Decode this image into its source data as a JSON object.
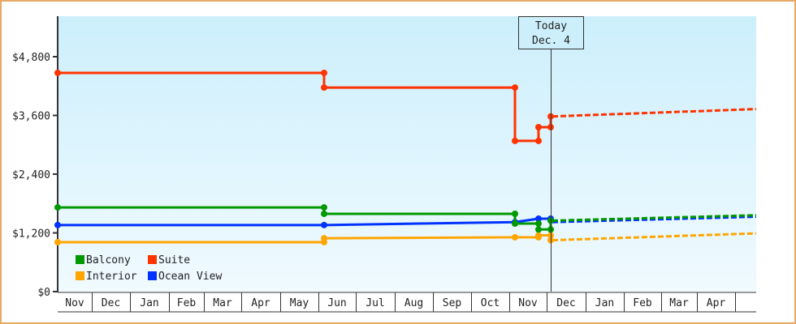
{
  "chart_data": {
    "type": "line",
    "title": "",
    "xlabel": "",
    "ylabel": "",
    "ylim": [
      0,
      5600
    ],
    "y_ticks": [
      {
        "value": 0,
        "label": "$0"
      },
      {
        "value": 1200,
        "label": "$1,200"
      },
      {
        "value": 2400,
        "label": "$2,400"
      },
      {
        "value": 3600,
        "label": "$3,600"
      },
      {
        "value": 4800,
        "label": "$4,800"
      }
    ],
    "x_months": [
      "Nov",
      "Dec",
      "Jan",
      "Feb",
      "Mar",
      "Apr",
      "May",
      "Jun",
      "Jul",
      "Aug",
      "Sep",
      "Oct",
      "Nov",
      "Dec",
      "Jan",
      "Feb",
      "Mar",
      "Apr",
      ""
    ],
    "today_marker": {
      "line1": "Today",
      "line2": "Dec. 4"
    },
    "legend": [
      {
        "name": "Balcony",
        "color": "#009900"
      },
      {
        "name": "Suite",
        "color": "#ff3300"
      },
      {
        "name": "Interior",
        "color": "#ffa500"
      },
      {
        "name": "Ocean View",
        "color": "#0033ff"
      }
    ],
    "series": [
      {
        "name": "Suite",
        "color": "#ff3300",
        "points": [
          [
            "Nov start",
            4470
          ],
          [
            "Jun",
            4470
          ],
          [
            "Jun",
            4170
          ],
          [
            "Nov mid",
            4170
          ],
          [
            "Nov mid",
            3080
          ],
          [
            "Nov late",
            3080
          ],
          [
            "Nov late",
            3360
          ],
          [
            "Dec 4",
            3360
          ],
          [
            "Dec 4",
            3580
          ]
        ],
        "forecast": [
          [
            "Dec 4",
            3580
          ],
          [
            "Apr end",
            3730
          ]
        ]
      },
      {
        "name": "Balcony",
        "color": "#009900",
        "points": [
          [
            "Nov start",
            1720
          ],
          [
            "Jun",
            1720
          ],
          [
            "Jun",
            1590
          ],
          [
            "Nov mid",
            1590
          ],
          [
            "Nov mid",
            1390
          ],
          [
            "Nov late",
            1390
          ],
          [
            "Nov late",
            1270
          ],
          [
            "Dec 4",
            1270
          ],
          [
            "Dec 4",
            1450
          ]
        ],
        "forecast": [
          [
            "Dec 4",
            1450
          ],
          [
            "Apr end",
            1560
          ]
        ]
      },
      {
        "name": "Ocean View",
        "color": "#0033ff",
        "points": [
          [
            "Nov start",
            1360
          ],
          [
            "Jun",
            1360
          ],
          [
            "Nov mid",
            1420
          ],
          [
            "Nov late",
            1490
          ],
          [
            "Dec 4",
            1490
          ]
        ],
        "forecast": [
          [
            "Dec 4",
            1420
          ],
          [
            "Apr end",
            1530
          ]
        ]
      },
      {
        "name": "Interior",
        "color": "#ffa500",
        "points": [
          [
            "Nov start",
            1010
          ],
          [
            "Jun",
            1010
          ],
          [
            "Jun",
            1090
          ],
          [
            "Nov mid",
            1110
          ],
          [
            "Nov late",
            1110
          ],
          [
            "Nov late",
            1150
          ],
          [
            "Dec 4",
            1150
          ],
          [
            "Dec 4",
            1050
          ]
        ],
        "forecast": [
          [
            "Dec 4",
            1050
          ],
          [
            "Apr end",
            1190
          ]
        ]
      }
    ]
  }
}
